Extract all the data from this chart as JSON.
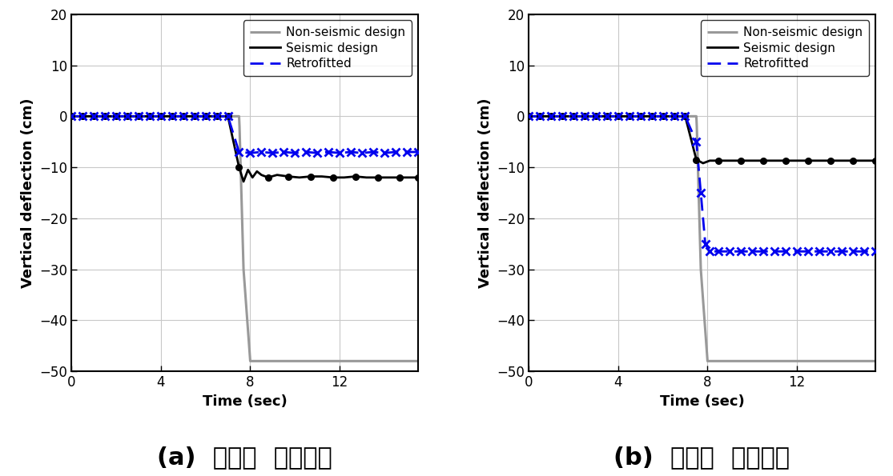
{
  "xlim": [
    0,
    15.5
  ],
  "ylim": [
    -50,
    20
  ],
  "xticks": [
    0,
    4,
    8,
    12
  ],
  "yticks": [
    -50,
    -40,
    -30,
    -20,
    -10,
    0,
    10,
    20
  ],
  "xlabel": "Time (sec)",
  "ylabel": "Vertical deflection (cm)",
  "legend_labels": [
    "Non-seismic design",
    "Seismic design",
    "Retrofitted"
  ],
  "caption_a": "(a)  모서리  기둥제거",
  "caption_b": "(b)  중앙부  기둥제거",
  "plot_a": {
    "nonseismic_x": [
      0,
      7.5,
      7.52,
      7.7,
      8.0,
      15.5
    ],
    "nonseismic_y": [
      0,
      0,
      -2,
      -30,
      -48,
      -48
    ],
    "seismic_x": [
      0,
      0.5,
      1.0,
      1.5,
      2.0,
      2.5,
      3.0,
      3.5,
      4.0,
      4.5,
      5.0,
      5.5,
      6.0,
      6.5,
      7.0,
      7.5,
      7.7,
      7.9,
      8.1,
      8.3,
      8.5,
      8.8,
      9.2,
      9.7,
      10.2,
      10.7,
      11.2,
      11.7,
      12.2,
      12.7,
      13.2,
      13.7,
      14.2,
      14.7,
      15.2,
      15.5
    ],
    "seismic_y": [
      0,
      0,
      0,
      0,
      0,
      0,
      0,
      0,
      0,
      0,
      0,
      0,
      0,
      0,
      0,
      -10,
      -12.8,
      -10.5,
      -12.0,
      -10.8,
      -11.5,
      -12.0,
      -11.5,
      -11.8,
      -12.0,
      -11.8,
      -11.8,
      -12.0,
      -12.0,
      -11.8,
      -12.0,
      -12.0,
      -12.0,
      -12.0,
      -12.0,
      -12.0
    ],
    "seismic_marker_x": [
      7.5,
      8.8,
      9.7,
      10.7,
      11.7,
      12.7,
      13.7,
      14.7,
      15.5
    ],
    "seismic_marker_y": [
      -10,
      -12.0,
      -11.8,
      -11.8,
      -12.0,
      -11.8,
      -12.0,
      -12.0,
      -12.0
    ],
    "retro_x": [
      0,
      0.5,
      1.0,
      1.5,
      2.0,
      2.5,
      3.0,
      3.5,
      4.0,
      4.5,
      5.0,
      5.5,
      6.0,
      6.5,
      7.0,
      7.5,
      8.0,
      8.5,
      9.0,
      9.5,
      10.0,
      10.5,
      11.0,
      11.5,
      12.0,
      12.5,
      13.0,
      13.5,
      14.0,
      14.5,
      15.0,
      15.5
    ],
    "retro_y": [
      0,
      0,
      0,
      0,
      0,
      0,
      0,
      0,
      0,
      0,
      0,
      0,
      0,
      0,
      0,
      -7.0,
      -7.2,
      -7.0,
      -7.2,
      -7.0,
      -7.2,
      -7.0,
      -7.2,
      -7.0,
      -7.2,
      -7.0,
      -7.2,
      -7.0,
      -7.2,
      -7.0,
      -7.0,
      -7.0
    ]
  },
  "plot_b": {
    "nonseismic_x": [
      0,
      7.5,
      7.52,
      7.7,
      8.0,
      15.5
    ],
    "nonseismic_y": [
      0,
      0,
      -2,
      -30,
      -48,
      -48
    ],
    "seismic_x": [
      0,
      0.5,
      1.0,
      1.5,
      2.0,
      2.5,
      3.0,
      3.5,
      4.0,
      4.5,
      5.0,
      5.5,
      6.0,
      6.5,
      7.0,
      7.5,
      7.8,
      8.1,
      8.5,
      9.0,
      9.5,
      10.0,
      10.5,
      11.0,
      11.5,
      12.0,
      12.5,
      13.0,
      13.5,
      14.0,
      14.5,
      15.0,
      15.5
    ],
    "seismic_y": [
      0,
      0,
      0,
      0,
      0,
      0,
      0,
      0,
      0,
      0,
      0,
      0,
      0,
      0,
      0,
      -8.5,
      -9.2,
      -8.7,
      -8.7,
      -8.7,
      -8.7,
      -8.7,
      -8.7,
      -8.7,
      -8.7,
      -8.7,
      -8.7,
      -8.7,
      -8.7,
      -8.7,
      -8.7,
      -8.7,
      -8.7
    ],
    "seismic_marker_x": [
      7.5,
      8.5,
      9.5,
      10.5,
      11.5,
      12.5,
      13.5,
      14.5,
      15.5
    ],
    "seismic_marker_y": [
      -8.5,
      -8.7,
      -8.7,
      -8.7,
      -8.7,
      -8.7,
      -8.7,
      -8.7,
      -8.7
    ],
    "retro_x": [
      0,
      0.5,
      1.0,
      1.5,
      2.0,
      2.5,
      3.0,
      3.5,
      4.0,
      4.5,
      5.0,
      5.5,
      6.0,
      6.5,
      7.0,
      7.5,
      7.7,
      7.9,
      8.1,
      8.5,
      9.0,
      9.5,
      10.0,
      10.5,
      11.0,
      11.5,
      12.0,
      12.5,
      13.0,
      13.5,
      14.0,
      14.5,
      15.0,
      15.5
    ],
    "retro_y": [
      0,
      0,
      0,
      0,
      0,
      0,
      0,
      0,
      0,
      0,
      0,
      0,
      0,
      0,
      0,
      -5,
      -15,
      -25,
      -26.5,
      -26.5,
      -26.5,
      -26.5,
      -26.5,
      -26.5,
      -26.5,
      -26.5,
      -26.5,
      -26.5,
      -26.5,
      -26.5,
      -26.5,
      -26.5,
      -26.5,
      -26.5
    ]
  },
  "nonseismic_color": "#999999",
  "seismic_color": "#000000",
  "retrofitted_color": "#0000ee",
  "bg_color": "#ffffff",
  "grid_color": "#c8c8c8",
  "caption_fontsize": 22,
  "tick_fontsize": 12,
  "label_fontsize": 13,
  "legend_fontsize": 11
}
